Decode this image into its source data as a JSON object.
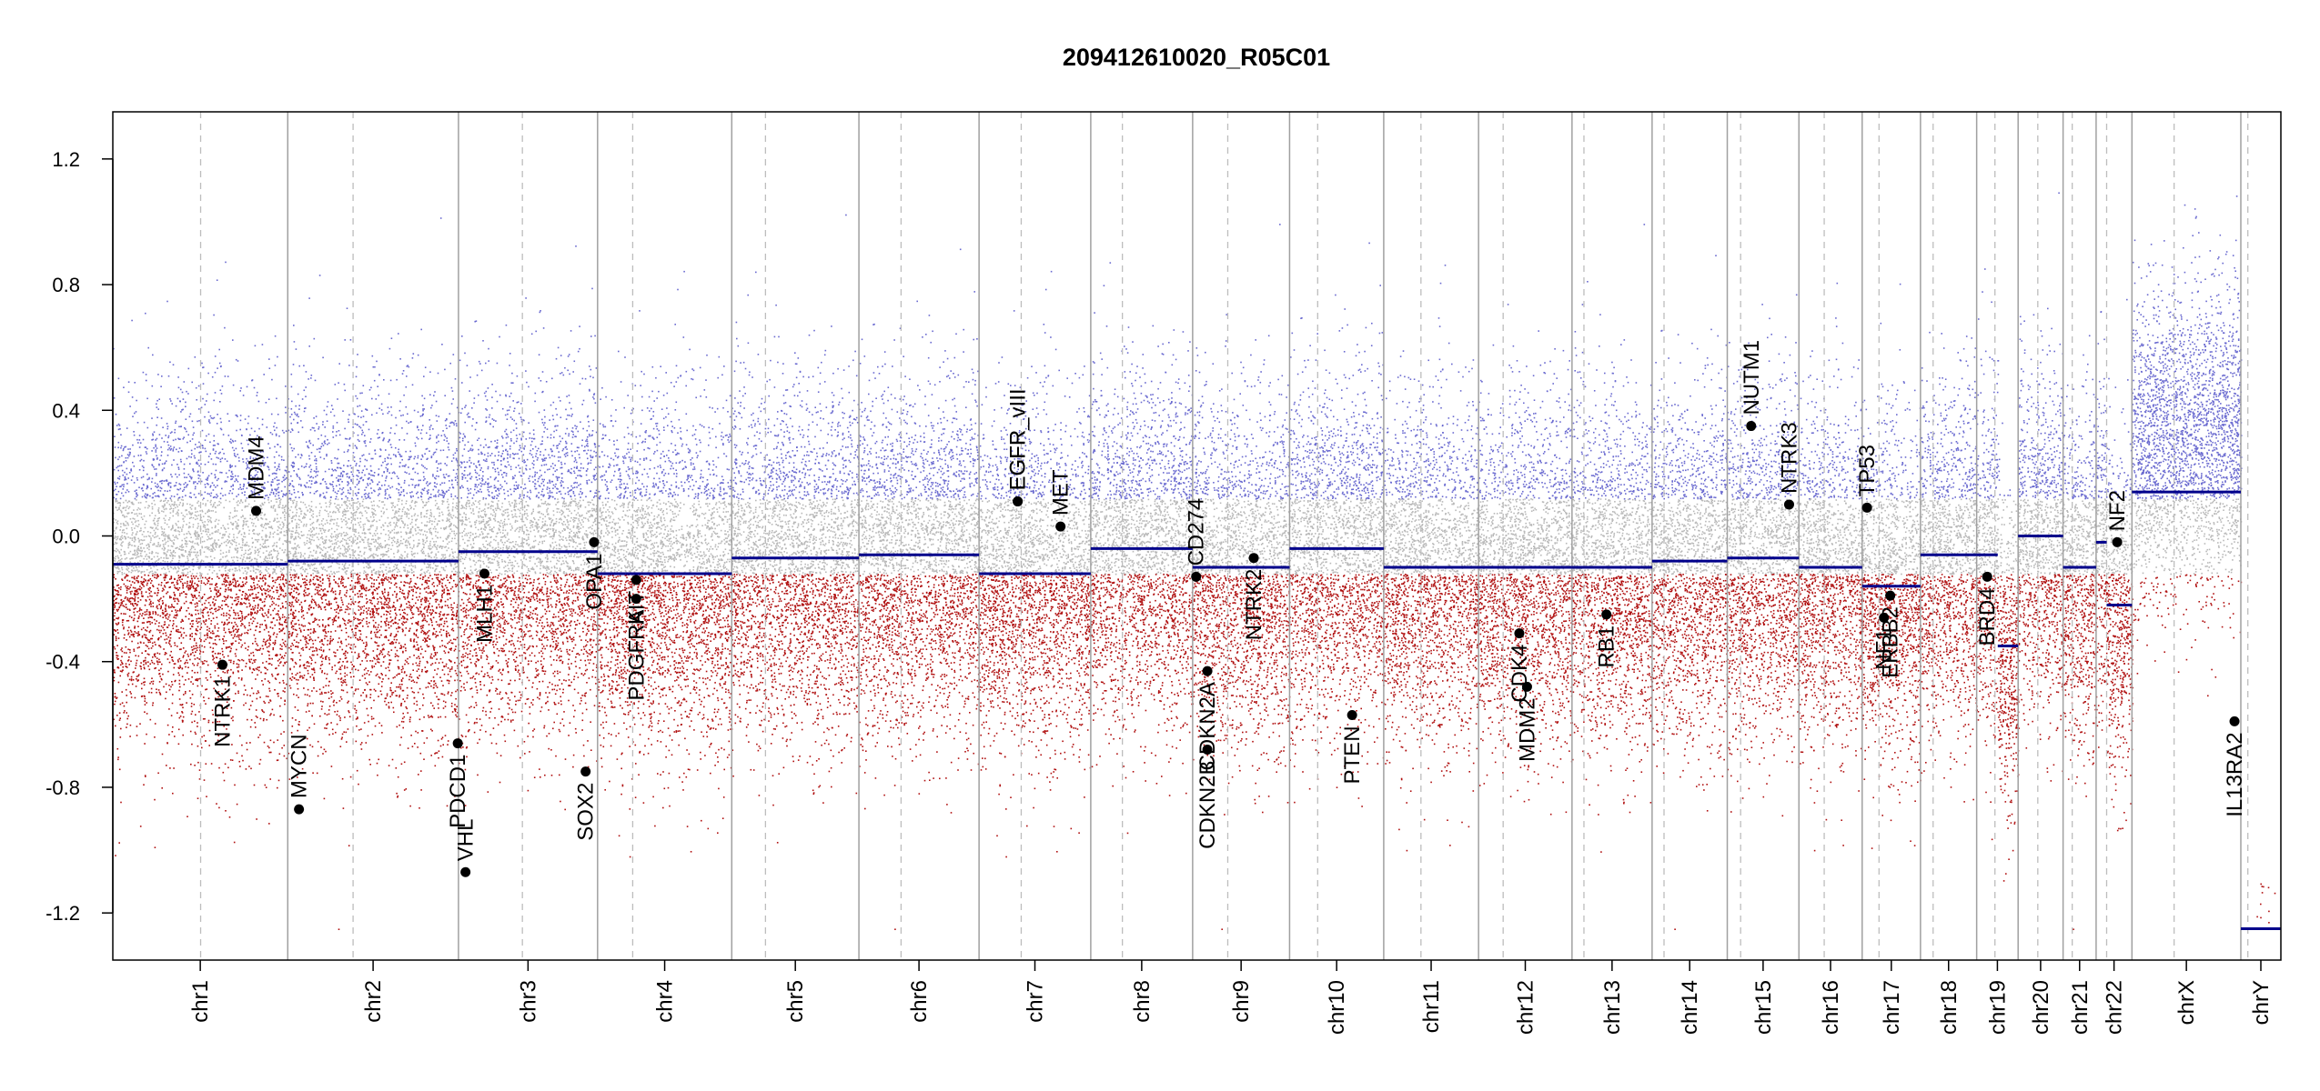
{
  "chart_data": {
    "type": "scatter",
    "title": "209412610020_R05C01",
    "xlabel": "",
    "ylabel": "",
    "ylim": [
      -1.35,
      1.35
    ],
    "y_ticks": [
      1.2,
      0.8,
      0.4,
      0.0,
      -0.4,
      -0.8,
      -1.2
    ],
    "y_tick_labels": [
      "1.2",
      "0.8",
      "0.4",
      "0.0",
      "-0.4",
      "-0.8",
      "-1.2"
    ],
    "colors": {
      "gain": "#6a6ad0",
      "loss": "#b01010",
      "neutral": "#b8b8b8",
      "segment": "#00008b",
      "gene_point": "#000000",
      "chrom_border": "#a0a0a0",
      "centromere": "#bdbdbd",
      "axis": "#000000"
    },
    "chromosomes": [
      {
        "name": "chr1",
        "length": 249,
        "centromere": 125
      },
      {
        "name": "chr2",
        "length": 243,
        "centromere": 93
      },
      {
        "name": "chr3",
        "length": 198,
        "centromere": 91
      },
      {
        "name": "chr4",
        "length": 191,
        "centromere": 50
      },
      {
        "name": "chr5",
        "length": 181,
        "centromere": 48
      },
      {
        "name": "chr6",
        "length": 171,
        "centromere": 60
      },
      {
        "name": "chr7",
        "length": 159,
        "centromere": 60
      },
      {
        "name": "chr8",
        "length": 145,
        "centromere": 45
      },
      {
        "name": "chr9",
        "length": 138,
        "centromere": 50
      },
      {
        "name": "chr10",
        "length": 134,
        "centromere": 40
      },
      {
        "name": "chr11",
        "length": 135,
        "centromere": 53
      },
      {
        "name": "chr12",
        "length": 133,
        "centromere": 35
      },
      {
        "name": "chr13",
        "length": 114,
        "centromere": 17
      },
      {
        "name": "chr14",
        "length": 107,
        "centromere": 17
      },
      {
        "name": "chr15",
        "length": 102,
        "centromere": 19
      },
      {
        "name": "chr16",
        "length": 90,
        "centromere": 36
      },
      {
        "name": "chr17",
        "length": 83,
        "centromere": 24
      },
      {
        "name": "chr18",
        "length": 80,
        "centromere": 18
      },
      {
        "name": "chr19",
        "length": 59,
        "centromere": 26
      },
      {
        "name": "chr20",
        "length": 64,
        "centromere": 28
      },
      {
        "name": "chr21",
        "length": 47,
        "centromere": 13
      },
      {
        "name": "chr22",
        "length": 51,
        "centromere": 15
      },
      {
        "name": "chrX",
        "length": 155,
        "centromere": 60
      },
      {
        "name": "chrY",
        "length": 57,
        "centromere": 10
      }
    ],
    "segments": [
      {
        "chr": "chr1",
        "start": 0,
        "end": 249,
        "value": -0.09
      },
      {
        "chr": "chr2",
        "start": 0,
        "end": 243,
        "value": -0.08
      },
      {
        "chr": "chr3",
        "start": 0,
        "end": 198,
        "value": -0.05
      },
      {
        "chr": "chr4",
        "start": 0,
        "end": 40,
        "value": -0.12
      },
      {
        "chr": "chr4",
        "start": 40,
        "end": 191,
        "value": -0.12
      },
      {
        "chr": "chr5",
        "start": 0,
        "end": 181,
        "value": -0.07
      },
      {
        "chr": "chr6",
        "start": 0,
        "end": 171,
        "value": -0.06
      },
      {
        "chr": "chr7",
        "start": 0,
        "end": 159,
        "value": -0.12
      },
      {
        "chr": "chr8",
        "start": 0,
        "end": 145,
        "value": -0.04
      },
      {
        "chr": "chr9",
        "start": 0,
        "end": 138,
        "value": -0.1
      },
      {
        "chr": "chr10",
        "start": 0,
        "end": 134,
        "value": -0.04
      },
      {
        "chr": "chr11",
        "start": 0,
        "end": 135,
        "value": -0.1
      },
      {
        "chr": "chr12",
        "start": 0,
        "end": 133,
        "value": -0.1
      },
      {
        "chr": "chr13",
        "start": 0,
        "end": 114,
        "value": -0.1
      },
      {
        "chr": "chr14",
        "start": 0,
        "end": 107,
        "value": -0.08
      },
      {
        "chr": "chr15",
        "start": 0,
        "end": 102,
        "value": -0.07
      },
      {
        "chr": "chr16",
        "start": 0,
        "end": 90,
        "value": -0.1
      },
      {
        "chr": "chr17",
        "start": 0,
        "end": 83,
        "value": -0.16
      },
      {
        "chr": "chr18",
        "start": 0,
        "end": 80,
        "value": -0.06
      },
      {
        "chr": "chr19",
        "start": 0,
        "end": 30,
        "value": -0.06
      },
      {
        "chr": "chr19",
        "start": 30,
        "end": 59,
        "value": -0.35
      },
      {
        "chr": "chr20",
        "start": 0,
        "end": 64,
        "value": 0.0
      },
      {
        "chr": "chr21",
        "start": 0,
        "end": 47,
        "value": -0.1
      },
      {
        "chr": "chr22",
        "start": 0,
        "end": 15,
        "value": -0.02
      },
      {
        "chr": "chr22",
        "start": 15,
        "end": 51,
        "value": -0.22
      },
      {
        "chr": "chrX",
        "start": 0,
        "end": 155,
        "value": 0.14
      },
      {
        "chr": "chrY",
        "start": 0,
        "end": 57,
        "value": -1.25
      }
    ],
    "genes": [
      {
        "name": "MDM4",
        "chr": "chr1",
        "pos": 204,
        "value": 0.08,
        "label_dir": "up"
      },
      {
        "name": "NTRK1",
        "chr": "chr1",
        "pos": 156,
        "value": -0.41,
        "label_dir": "down"
      },
      {
        "name": "MYCN",
        "chr": "chr2",
        "pos": 16,
        "value": -0.87,
        "label_dir": "up"
      },
      {
        "name": "PDCD1",
        "chr": "chr2",
        "pos": 242,
        "value": -0.66,
        "label_dir": "down"
      },
      {
        "name": "VHL",
        "chr": "chr3",
        "pos": 10,
        "value": -1.07,
        "label_dir": "up"
      },
      {
        "name": "MLH1",
        "chr": "chr3",
        "pos": 37,
        "value": -0.12,
        "label_dir": "down"
      },
      {
        "name": "SOX2",
        "chr": "chr3",
        "pos": 181,
        "value": -0.75,
        "label_dir": "down"
      },
      {
        "name": "OPA1",
        "chr": "chr3",
        "pos": 193,
        "value": -0.02,
        "label_dir": "down"
      },
      {
        "name": "KIT",
        "chr": "chr4",
        "pos": 55,
        "value": -0.14,
        "label_dir": "down"
      },
      {
        "name": "PDGFRA",
        "chr": "chr4",
        "pos": 55,
        "value": -0.2,
        "label_dir": "down"
      },
      {
        "name": "EGFR",
        "chr": "chr7",
        "pos": 55,
        "value": 0.11,
        "label_dir": "up"
      },
      {
        "name": "EGFR_vIII",
        "chr": "chr7",
        "pos": 55,
        "value": 0.11,
        "label_dir": "up"
      },
      {
        "name": "MET",
        "chr": "chr7",
        "pos": 116,
        "value": 0.03,
        "label_dir": "up"
      },
      {
        "name": "CD274",
        "chr": "chr9",
        "pos": 5,
        "value": -0.13,
        "label_dir": "up"
      },
      {
        "name": "CDKN2A",
        "chr": "chr9",
        "pos": 21,
        "value": -0.43,
        "label_dir": "down"
      },
      {
        "name": "CDKN2B",
        "chr": "chr9",
        "pos": 21,
        "value": -0.68,
        "label_dir": "down"
      },
      {
        "name": "NTRK2",
        "chr": "chr9",
        "pos": 87,
        "value": -0.07,
        "label_dir": "down"
      },
      {
        "name": "PTEN",
        "chr": "chr10",
        "pos": 89,
        "value": -0.57,
        "label_dir": "down"
      },
      {
        "name": "CDK4",
        "chr": "chr12",
        "pos": 58,
        "value": -0.31,
        "label_dir": "down"
      },
      {
        "name": "MDM2",
        "chr": "chr12",
        "pos": 69,
        "value": -0.48,
        "label_dir": "down"
      },
      {
        "name": "RB1",
        "chr": "chr13",
        "pos": 49,
        "value": -0.25,
        "label_dir": "down"
      },
      {
        "name": "NUTM1",
        "chr": "chr15",
        "pos": 34,
        "value": 0.35,
        "label_dir": "up"
      },
      {
        "name": "NTRK3",
        "chr": "chr15",
        "pos": 88,
        "value": 0.1,
        "label_dir": "up"
      },
      {
        "name": "TP53",
        "chr": "chr17",
        "pos": 7,
        "value": 0.09,
        "label_dir": "up"
      },
      {
        "name": "ERBB2",
        "chr": "chr17",
        "pos": 40,
        "value": -0.19,
        "label_dir": "down"
      },
      {
        "name": "NF1",
        "chr": "chr17",
        "pos": 31,
        "value": -0.26,
        "label_dir": "down"
      },
      {
        "name": "BRD4",
        "chr": "chr19",
        "pos": 15,
        "value": -0.13,
        "label_dir": "down"
      },
      {
        "name": "NF2",
        "chr": "chr22",
        "pos": 30,
        "value": -0.02,
        "label_dir": "up"
      },
      {
        "name": "IL13RA2",
        "chr": "chrX",
        "pos": 146,
        "value": -0.59,
        "label_dir": "down"
      }
    ]
  }
}
